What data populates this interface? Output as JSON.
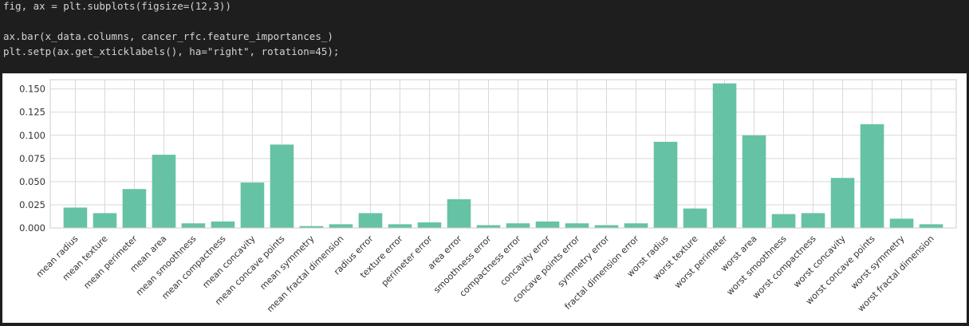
{
  "code": {
    "lines": [
      "fig, ax = plt.subplots(figsize=(12,3))",
      "",
      "ax.bar(x_data.columns, cancer_rfc.feature_importances_)",
      "plt.setp(ax.get_xticklabels(), ha=\"right\", rotation=45);"
    ]
  },
  "colors": {
    "bar": "#66c2a5",
    "grid": "#d9d9d9",
    "axis": "#cccccc",
    "text": "#333333",
    "background": "#ffffff"
  },
  "chart_data": {
    "type": "bar",
    "title": "",
    "xlabel": "",
    "ylabel": "",
    "ylim": [
      0,
      0.16
    ],
    "yticks": [
      0.0,
      0.025,
      0.05,
      0.075,
      0.1,
      0.125,
      0.15
    ],
    "ytick_labels": [
      "0.000",
      "0.025",
      "0.050",
      "0.075",
      "0.100",
      "0.125",
      "0.150"
    ],
    "grid": true,
    "categories": [
      "mean radius",
      "mean texture",
      "mean perimeter",
      "mean area",
      "mean smoothness",
      "mean compactness",
      "mean concavity",
      "mean concave points",
      "mean symmetry",
      "mean fractal dimension",
      "radius error",
      "texture error",
      "perimeter error",
      "area error",
      "smoothness error",
      "compactness error",
      "concavity error",
      "concave points error",
      "symmetry error",
      "fractal dimension error",
      "worst radius",
      "worst texture",
      "worst perimeter",
      "worst area",
      "worst smoothness",
      "worst compactness",
      "worst concavity",
      "worst concave points",
      "worst symmetry",
      "worst fractal dimension"
    ],
    "values": [
      0.022,
      0.016,
      0.042,
      0.079,
      0.005,
      0.007,
      0.049,
      0.09,
      0.002,
      0.004,
      0.016,
      0.004,
      0.006,
      0.031,
      0.003,
      0.005,
      0.007,
      0.005,
      0.003,
      0.005,
      0.093,
      0.021,
      0.156,
      0.1,
      0.015,
      0.016,
      0.054,
      0.112,
      0.01,
      0.004
    ]
  }
}
